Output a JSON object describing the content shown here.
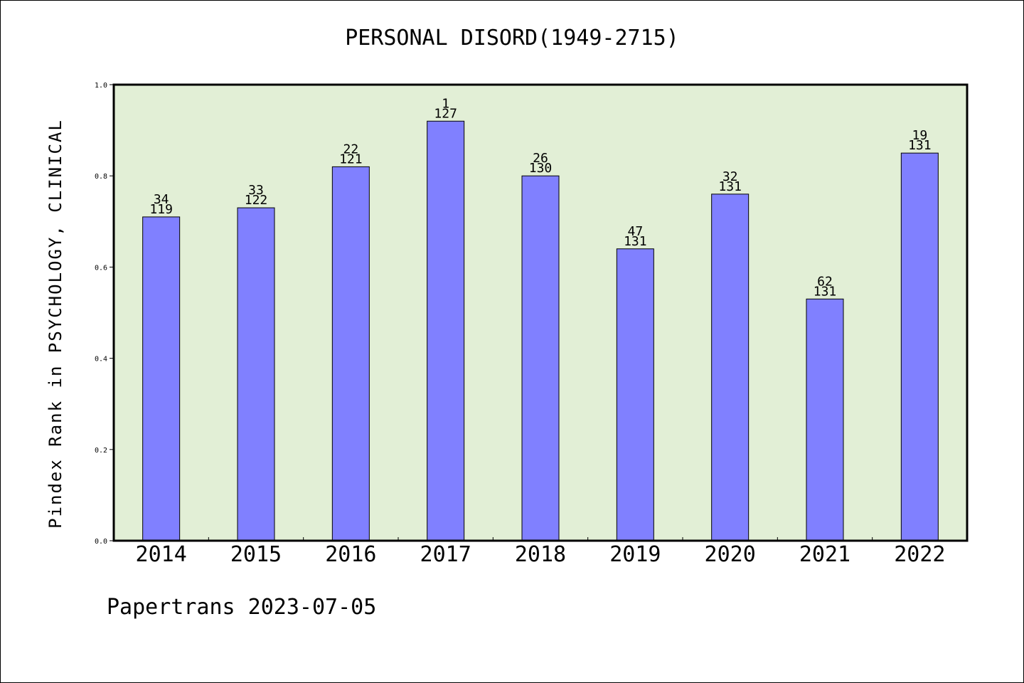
{
  "chart_data": {
    "type": "bar",
    "title": "PERSONAL DISORD(1949-2715)",
    "ylabel": "Pindex Rank in PSYCHOLOGY, CLINICAL",
    "xlabel": "",
    "categories": [
      "2014",
      "2015",
      "2016",
      "2017",
      "2018",
      "2019",
      "2020",
      "2021",
      "2022"
    ],
    "values": [
      0.71,
      0.73,
      0.82,
      0.92,
      0.8,
      0.64,
      0.76,
      0.53,
      0.85
    ],
    "rank_labels": [
      "34",
      "33",
      "22",
      "1",
      "26",
      "47",
      "32",
      "62",
      "19"
    ],
    "total_labels": [
      "119",
      "122",
      "121",
      "127",
      "130",
      "131",
      "131",
      "131",
      "131"
    ],
    "ylim": [
      0,
      1.0
    ],
    "yticks": [
      "0.0",
      "0.2",
      "0.4",
      "0.6",
      "0.8",
      "1.0"
    ],
    "grid": false,
    "colors": {
      "bar": "#8080ff",
      "plot_background": "#e2efd6",
      "axis": "#000000"
    }
  },
  "footer": "Papertrans 2023-07-05"
}
